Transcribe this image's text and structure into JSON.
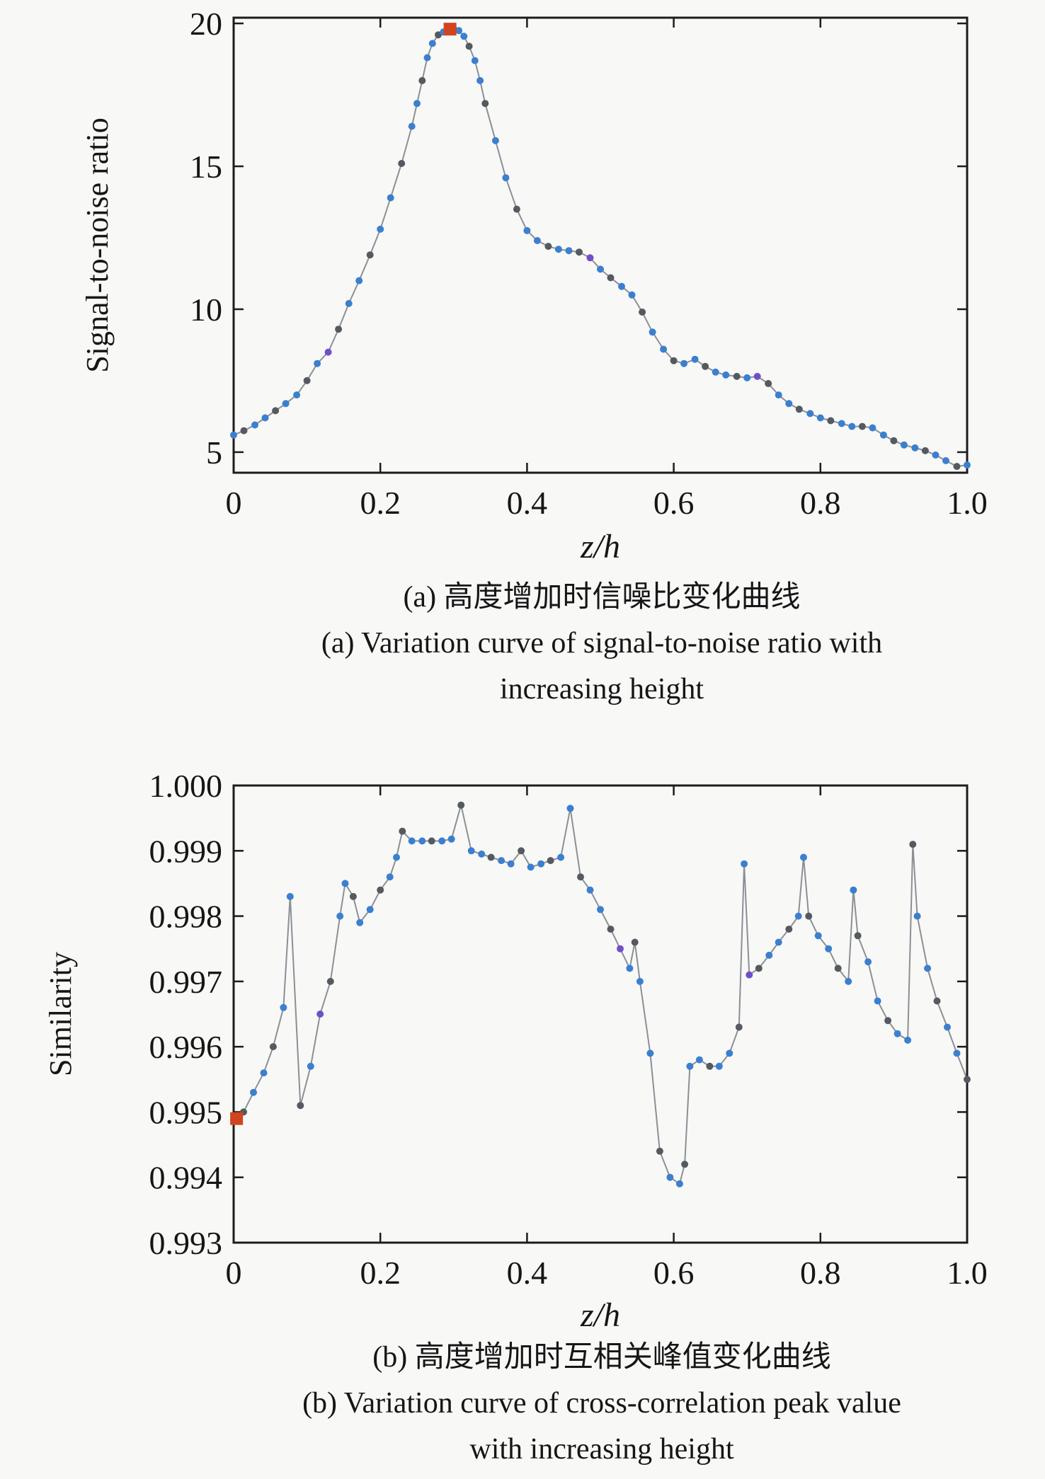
{
  "page": {
    "background": "#f8f8f7"
  },
  "colors": {
    "axis": "#1c1c1c",
    "line": "#8b9095",
    "marker_blue": "#3b7fd0",
    "marker_gray": "#555a60",
    "marker_purple": "#7050c8",
    "marker_red": "#d0441f"
  },
  "chart_data": [
    {
      "type": "line",
      "title": "",
      "xlabel": "z/h",
      "ylabel": "Signal-to-noise ratio",
      "xlim": [
        0,
        1
      ],
      "ylim": [
        4.28,
        20.2
      ],
      "grid": false,
      "legend": "none",
      "caption_zh": "(a) 高度增加时信噪比变化曲线",
      "caption_en_1": "(a) Variation curve of signal-to-noise ratio with",
      "caption_en_2": "increasing height",
      "xticks": [
        {
          "v": 0,
          "label": "0"
        },
        {
          "v": 0.2,
          "label": "0.2"
        },
        {
          "v": 0.4,
          "label": "0.4"
        },
        {
          "v": 0.6,
          "label": "0.6"
        },
        {
          "v": 0.8,
          "label": "0.8"
        },
        {
          "v": 1.0,
          "label": "1.0"
        }
      ],
      "yticks": [
        {
          "v": 5,
          "label": "5"
        },
        {
          "v": 10,
          "label": "10"
        },
        {
          "v": 15,
          "label": "15"
        },
        {
          "v": 20,
          "label": "20"
        }
      ],
      "highlight": {
        "x": 0.295,
        "y": 19.8,
        "color": "#d0441f",
        "shape": "square"
      },
      "x": [
        0,
        0.014,
        0.029,
        0.043,
        0.057,
        0.071,
        0.086,
        0.1,
        0.114,
        0.129,
        0.143,
        0.157,
        0.171,
        0.186,
        0.2,
        0.214,
        0.229,
        0.243,
        0.25,
        0.257,
        0.264,
        0.271,
        0.279,
        0.286,
        0.293,
        0.3,
        0.307,
        0.314,
        0.321,
        0.329,
        0.336,
        0.343,
        0.357,
        0.371,
        0.386,
        0.4,
        0.414,
        0.429,
        0.443,
        0.457,
        0.471,
        0.486,
        0.5,
        0.514,
        0.529,
        0.543,
        0.557,
        0.571,
        0.586,
        0.6,
        0.614,
        0.629,
        0.643,
        0.657,
        0.671,
        0.686,
        0.7,
        0.714,
        0.729,
        0.743,
        0.757,
        0.771,
        0.786,
        0.8,
        0.814,
        0.829,
        0.843,
        0.857,
        0.871,
        0.886,
        0.9,
        0.914,
        0.929,
        0.943,
        0.957,
        0.971,
        0.986,
        1.0
      ],
      "y": [
        5.6,
        5.75,
        5.95,
        6.2,
        6.45,
        6.7,
        7.0,
        7.5,
        8.1,
        8.5,
        9.3,
        10.2,
        11.0,
        11.9,
        12.8,
        13.9,
        15.1,
        16.4,
        17.2,
        18.0,
        18.8,
        19.3,
        19.6,
        19.7,
        19.75,
        19.8,
        19.75,
        19.55,
        19.2,
        18.7,
        18.0,
        17.2,
        15.9,
        14.6,
        13.5,
        12.75,
        12.4,
        12.2,
        12.1,
        12.05,
        12.0,
        11.8,
        11.4,
        11.1,
        10.8,
        10.5,
        9.9,
        9.2,
        8.6,
        8.2,
        8.1,
        8.25,
        8.0,
        7.8,
        7.7,
        7.65,
        7.6,
        7.65,
        7.4,
        7.0,
        6.7,
        6.5,
        6.35,
        6.2,
        6.1,
        6.0,
        5.9,
        5.9,
        5.85,
        5.6,
        5.4,
        5.25,
        5.15,
        5.05,
        4.9,
        4.7,
        4.5,
        4.55
      ]
    },
    {
      "type": "line",
      "title": "",
      "xlabel": "z/h",
      "ylabel": "Similarity",
      "xlim": [
        0,
        1
      ],
      "ylim": [
        0.993,
        1.0
      ],
      "grid": false,
      "legend": "none",
      "caption_zh": "(b) 高度增加时互相关峰值变化曲线",
      "caption_en_1": "(b) Variation curve of cross-correlation peak value",
      "caption_en_2": "with increasing height",
      "xticks": [
        {
          "v": 0,
          "label": "0"
        },
        {
          "v": 0.2,
          "label": "0.2"
        },
        {
          "v": 0.4,
          "label": "0.4"
        },
        {
          "v": 0.6,
          "label": "0.6"
        },
        {
          "v": 0.8,
          "label": "0.8"
        },
        {
          "v": 1.0,
          "label": "1.0"
        }
      ],
      "yticks": [
        {
          "v": 1.0,
          "label": "1.000"
        },
        {
          "v": 0.999,
          "label": "0.999"
        },
        {
          "v": 0.998,
          "label": "0.998"
        },
        {
          "v": 0.997,
          "label": "0.997"
        },
        {
          "v": 0.996,
          "label": "0.996"
        },
        {
          "v": 0.995,
          "label": "0.995"
        },
        {
          "v": 0.994,
          "label": "0.994"
        },
        {
          "v": 0.993,
          "label": "0.993"
        }
      ],
      "highlight": {
        "x": 0.004,
        "y": 0.9949,
        "color": "#d0441f",
        "shape": "square"
      },
      "x": [
        0.0,
        0.0135,
        0.027,
        0.041,
        0.054,
        0.068,
        0.077,
        0.091,
        0.105,
        0.118,
        0.132,
        0.145,
        0.152,
        0.163,
        0.172,
        0.186,
        0.2,
        0.213,
        0.222,
        0.23,
        0.243,
        0.257,
        0.27,
        0.284,
        0.297,
        0.31,
        0.324,
        0.338,
        0.351,
        0.365,
        0.378,
        0.392,
        0.405,
        0.419,
        0.432,
        0.446,
        0.459,
        0.473,
        0.486,
        0.5,
        0.514,
        0.527,
        0.54,
        0.547,
        0.554,
        0.568,
        0.581,
        0.595,
        0.608,
        0.615,
        0.622,
        0.635,
        0.649,
        0.662,
        0.676,
        0.689,
        0.696,
        0.703,
        0.716,
        0.73,
        0.743,
        0.757,
        0.77,
        0.777,
        0.784,
        0.797,
        0.811,
        0.824,
        0.838,
        0.845,
        0.851,
        0.865,
        0.878,
        0.892,
        0.905,
        0.919,
        0.926,
        0.932,
        0.946,
        0.959,
        0.973,
        0.986,
        1.0
      ],
      "y": [
        0.9949,
        0.995,
        0.9953,
        0.9956,
        0.996,
        0.9966,
        0.9983,
        0.9951,
        0.9957,
        0.9965,
        0.997,
        0.998,
        0.9985,
        0.9983,
        0.9979,
        0.9981,
        0.9984,
        0.9986,
        0.9989,
        0.9993,
        0.99915,
        0.99915,
        0.99915,
        0.99915,
        0.99918,
        0.9997,
        0.999,
        0.99895,
        0.9989,
        0.99885,
        0.9988,
        0.999,
        0.99875,
        0.9988,
        0.99885,
        0.9989,
        0.99965,
        0.9986,
        0.9984,
        0.9981,
        0.9978,
        0.9975,
        0.9972,
        0.9976,
        0.997,
        0.9959,
        0.9944,
        0.994,
        0.9939,
        0.9942,
        0.9957,
        0.9958,
        0.9957,
        0.9957,
        0.9959,
        0.9963,
        0.9988,
        0.9971,
        0.9972,
        0.9974,
        0.9976,
        0.9978,
        0.998,
        0.9989,
        0.998,
        0.9977,
        0.9975,
        0.9972,
        0.997,
        0.9984,
        0.9977,
        0.9973,
        0.9967,
        0.9964,
        0.9962,
        0.9961,
        0.9991,
        0.998,
        0.9972,
        0.9967,
        0.9963,
        0.9959,
        0.9955
      ]
    }
  ]
}
